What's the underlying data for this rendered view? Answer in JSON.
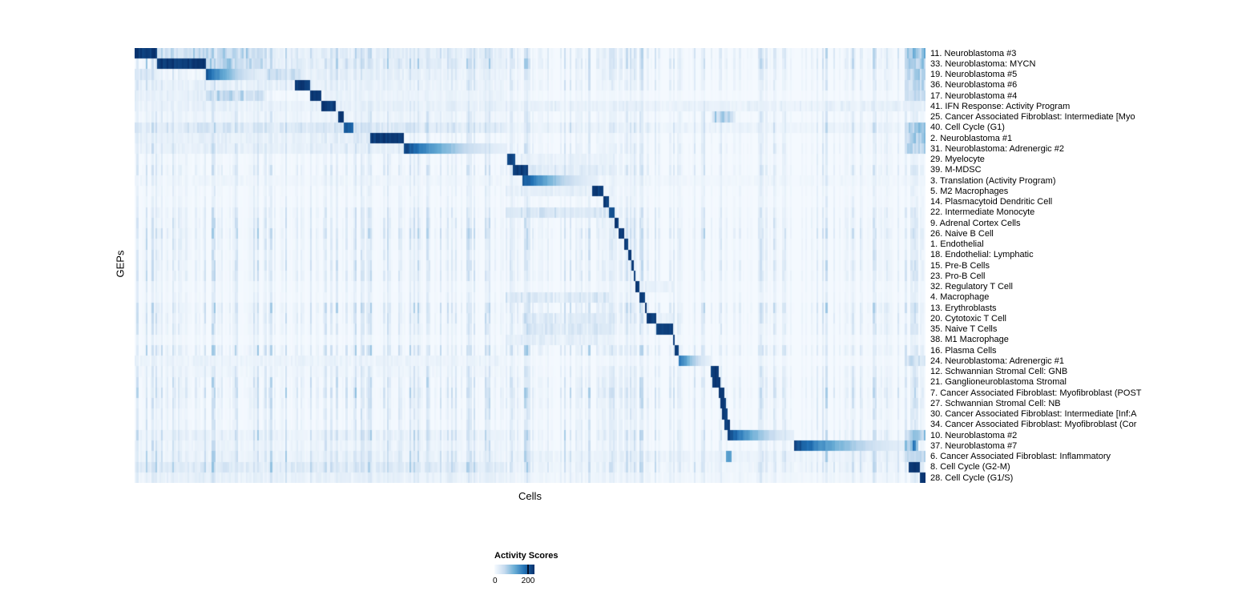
{
  "figure": {
    "background": "#ffffff"
  },
  "chart_data": {
    "type": "heatmap",
    "title": "",
    "xlabel": "Cells",
    "ylabel": "GEPs",
    "legend": {
      "title": "Activity Scores",
      "min_label": "0",
      "max_label": "200",
      "min": 0,
      "max": 200,
      "position": "bottom"
    },
    "colormap": {
      "name": "Blues",
      "stops": [
        "#f7fbff",
        "#c6dbef",
        "#6baed6",
        "#2171b5",
        "#08306b"
      ]
    },
    "x_axis": {
      "n_cells_rendered": 420,
      "grid": false
    },
    "rows": [
      {
        "label": "11. Neuroblastoma #3",
        "block": [
          0.0,
          0.029
        ],
        "peak": 1.0,
        "grad": "flat",
        "bands": [
          [
            0.029,
            0.165,
            0.3
          ],
          [
            0.165,
            0.47,
            0.12
          ],
          [
            0.975,
            1.0,
            0.45
          ]
        ]
      },
      {
        "label": "33. Neuroblastoma: MYCN",
        "block": [
          0.029,
          0.091
        ],
        "peak": 1.0,
        "grad": "flat",
        "bands": [
          [
            0.091,
            0.165,
            0.35
          ],
          [
            0.165,
            0.47,
            0.12
          ],
          [
            0.975,
            1.0,
            0.4
          ]
        ]
      },
      {
        "label": "19. Neuroblastoma #5",
        "block": [
          0.091,
          0.165
        ],
        "peak": 0.9,
        "grad": "fade",
        "bands": [
          [
            0.0,
            0.029,
            0.18
          ],
          [
            0.165,
            0.21,
            0.25
          ],
          [
            0.21,
            0.47,
            0.1
          ],
          [
            0.975,
            1.0,
            0.35
          ]
        ]
      },
      {
        "label": "36. Neuroblastoma #6",
        "block": [
          0.202,
          0.222
        ],
        "peak": 1.0,
        "grad": "flat",
        "bands": [
          [
            0.0,
            0.2,
            0.1
          ],
          [
            0.222,
            0.47,
            0.08
          ],
          [
            0.975,
            1.0,
            0.3
          ]
        ]
      },
      {
        "label": "17. Neuroblastoma #4",
        "block": [
          0.222,
          0.236
        ],
        "peak": 1.0,
        "grad": "flat",
        "bands": [
          [
            0.091,
            0.165,
            0.3
          ],
          [
            0.0,
            0.09,
            0.1
          ],
          [
            0.24,
            0.47,
            0.08
          ],
          [
            0.975,
            1.0,
            0.3
          ]
        ]
      },
      {
        "label": "41. IFN Response: Activity Program",
        "block": [
          0.236,
          0.254
        ],
        "peak": 1.0,
        "grad": "flat",
        "bands": [
          [
            0.0,
            1.0,
            0.1
          ]
        ]
      },
      {
        "label": "25. Cancer Associated Fibroblast: Intermediate [Myo",
        "block": [
          0.256,
          0.265
        ],
        "peak": 1.0,
        "grad": "flat",
        "bands": [
          [
            0.73,
            0.76,
            0.35
          ],
          [
            0.0,
            0.47,
            0.06
          ]
        ]
      },
      {
        "label": "40. Cell Cycle (G1)",
        "block": [
          0.265,
          0.276
        ],
        "peak": 0.85,
        "grad": "flat",
        "bands": [
          [
            0.0,
            0.47,
            0.18
          ],
          [
            0.47,
            0.97,
            0.07
          ],
          [
            0.975,
            1.0,
            0.4
          ]
        ]
      },
      {
        "label": "2. Neuroblastoma #1",
        "block": [
          0.298,
          0.34
        ],
        "peak": 1.0,
        "grad": "flat",
        "bands": [
          [
            0.276,
            0.298,
            0.15
          ],
          [
            0.0,
            0.276,
            0.1
          ],
          [
            0.975,
            1.0,
            0.35
          ]
        ]
      },
      {
        "label": "31. Neuroblastoma: Adrenergic #2",
        "block": [
          0.34,
          0.468
        ],
        "peak": 1.0,
        "grad": "fade",
        "bands": [
          [
            0.0,
            0.34,
            0.1
          ],
          [
            0.975,
            1.0,
            0.35
          ]
        ]
      },
      {
        "label": "29. Myelocyte",
        "block": [
          0.471,
          0.481
        ],
        "peak": 0.95,
        "grad": "flat",
        "bands": [
          [
            0.481,
            0.6,
            0.1
          ]
        ]
      },
      {
        "label": "39. M-MDSC",
        "block": [
          0.478,
          0.497
        ],
        "peak": 1.0,
        "grad": "flat",
        "bands": [
          [
            0.497,
            0.6,
            0.15
          ]
        ]
      },
      {
        "label": "3. Translation (Activity Program)",
        "block": [
          0.49,
          0.585
        ],
        "peak": 0.95,
        "grad": "fade",
        "bands": [
          [
            0.0,
            1.0,
            0.05
          ]
        ]
      },
      {
        "label": "5. M2 Macrophages",
        "block": [
          0.578,
          0.594
        ],
        "peak": 1.0,
        "grad": "flat",
        "bands": [
          [
            0.47,
            0.578,
            0.12
          ]
        ]
      },
      {
        "label": "14. Plasmacytoid Dendritic Cell",
        "block": [
          0.594,
          0.601
        ],
        "peak": 1.0,
        "grad": "flat",
        "bands": []
      },
      {
        "label": "22. Intermediate Monocyte",
        "block": [
          0.6,
          0.607
        ],
        "peak": 0.95,
        "grad": "flat",
        "bands": [
          [
            0.47,
            0.6,
            0.2
          ]
        ]
      },
      {
        "label": "9. Adrenal Cortex Cells",
        "block": [
          0.606,
          0.612
        ],
        "peak": 1.0,
        "grad": "flat",
        "bands": []
      },
      {
        "label": "26. Naive B Cell",
        "block": [
          0.612,
          0.618
        ],
        "peak": 1.0,
        "grad": "flat",
        "bands": []
      },
      {
        "label": "1. Endothelial",
        "block": [
          0.618,
          0.624
        ],
        "peak": 1.0,
        "grad": "flat",
        "bands": []
      },
      {
        "label": "18. Endothelial: Lymphatic",
        "block": [
          0.624,
          0.628
        ],
        "peak": 1.0,
        "grad": "flat",
        "bands": []
      },
      {
        "label": "15. Pre-B Cells",
        "block": [
          0.628,
          0.631
        ],
        "peak": 1.0,
        "grad": "flat",
        "bands": []
      },
      {
        "label": "23. Pro-B Cell",
        "block": [
          0.631,
          0.634
        ],
        "peak": 1.0,
        "grad": "flat",
        "bands": []
      },
      {
        "label": "32. Regulatory T Cell",
        "block": [
          0.634,
          0.638
        ],
        "peak": 1.0,
        "grad": "flat",
        "bands": [
          [
            0.64,
            0.68,
            0.12
          ]
        ]
      },
      {
        "label": "4. Macrophage",
        "block": [
          0.638,
          0.645
        ],
        "peak": 1.0,
        "grad": "flat",
        "bands": [
          [
            0.47,
            0.6,
            0.18
          ]
        ]
      },
      {
        "label": "13. Erythroblasts",
        "block": [
          0.645,
          0.648
        ],
        "peak": 1.0,
        "grad": "flat",
        "bands": []
      },
      {
        "label": "20. Cytotoxic T Cell",
        "block": [
          0.648,
          0.66
        ],
        "peak": 1.0,
        "grad": "flat",
        "bands": [
          [
            0.49,
            0.6,
            0.15
          ],
          [
            0.66,
            0.68,
            0.15
          ]
        ]
      },
      {
        "label": "35. Naive T Cells",
        "block": [
          0.66,
          0.68
        ],
        "peak": 1.0,
        "grad": "flat",
        "bands": [
          [
            0.49,
            0.6,
            0.18
          ]
        ]
      },
      {
        "label": "38. M1 Macrophage",
        "block": [
          0.68,
          0.684
        ],
        "peak": 1.0,
        "grad": "flat",
        "bands": [
          [
            0.47,
            0.6,
            0.12
          ]
        ]
      },
      {
        "label": "16. Plasma Cells",
        "block": [
          0.684,
          0.687
        ],
        "peak": 1.0,
        "grad": "flat",
        "bands": []
      },
      {
        "label": "24. Neuroblastoma: Adrenergic #1",
        "block": [
          0.687,
          0.73
        ],
        "peak": 0.85,
        "grad": "fade",
        "bands": [
          [
            0.0,
            0.47,
            0.08
          ],
          [
            0.975,
            1.0,
            0.25
          ]
        ]
      },
      {
        "label": "12. Schwannian Stromal Cell: GNB",
        "block": [
          0.728,
          0.738
        ],
        "peak": 1.0,
        "grad": "flat",
        "bands": [
          [
            0.0,
            0.47,
            0.05
          ]
        ]
      },
      {
        "label": "21. Ganglioneuroblastoma Stromal",
        "block": [
          0.731,
          0.741
        ],
        "peak": 1.0,
        "grad": "flat",
        "bands": []
      },
      {
        "label": "7. Cancer Associated Fibroblast: Myofibroblast (POST",
        "block": [
          0.738,
          0.745
        ],
        "peak": 1.0,
        "grad": "flat",
        "bands": []
      },
      {
        "label": "27. Schwannian Stromal Cell: NB",
        "block": [
          0.741,
          0.748
        ],
        "peak": 1.0,
        "grad": "flat",
        "bands": []
      },
      {
        "label": "30. Cancer Associated Fibroblast: Intermediate [Inf:A",
        "block": [
          0.743,
          0.75
        ],
        "peak": 1.0,
        "grad": "flat",
        "bands": []
      },
      {
        "label": "34. Cancer Associated Fibroblast: Myofibroblast (Cor",
        "block": [
          0.746,
          0.753
        ],
        "peak": 1.0,
        "grad": "flat",
        "bands": []
      },
      {
        "label": "10. Neuroblastoma #2",
        "block": [
          0.751,
          0.834
        ],
        "peak": 1.0,
        "grad": "fade",
        "bands": [
          [
            0.0,
            0.47,
            0.08
          ],
          [
            0.975,
            1.0,
            0.35
          ]
        ]
      },
      {
        "label": "37. Neuroblastoma #7",
        "block": [
          0.834,
          0.978
        ],
        "peak": 1.0,
        "grad": "fade",
        "bands": [
          [
            0.0,
            0.47,
            0.06
          ],
          [
            0.975,
            0.99,
            0.6
          ]
        ]
      },
      {
        "label": "6. Cancer Associated Fibroblast: Inflammatory",
        "block": [
          0.748,
          0.754
        ],
        "peak": 0.6,
        "grad": "flat",
        "bands": [
          [
            0.0,
            1.0,
            0.08
          ],
          [
            0.975,
            1.0,
            0.3
          ]
        ]
      },
      {
        "label": "8. Cell Cycle (G2-M)",
        "block": [
          0.978,
          0.994
        ],
        "peak": 1.0,
        "grad": "flat",
        "bands": [
          [
            0.0,
            0.47,
            0.15
          ],
          [
            0.47,
            0.97,
            0.06
          ]
        ]
      },
      {
        "label": "28. Cell Cycle (G1/S)",
        "block": [
          0.992,
          1.0
        ],
        "peak": 1.0,
        "grad": "flat",
        "bands": [
          [
            0.0,
            0.47,
            0.1
          ],
          [
            0.47,
            0.97,
            0.05
          ]
        ]
      }
    ]
  }
}
